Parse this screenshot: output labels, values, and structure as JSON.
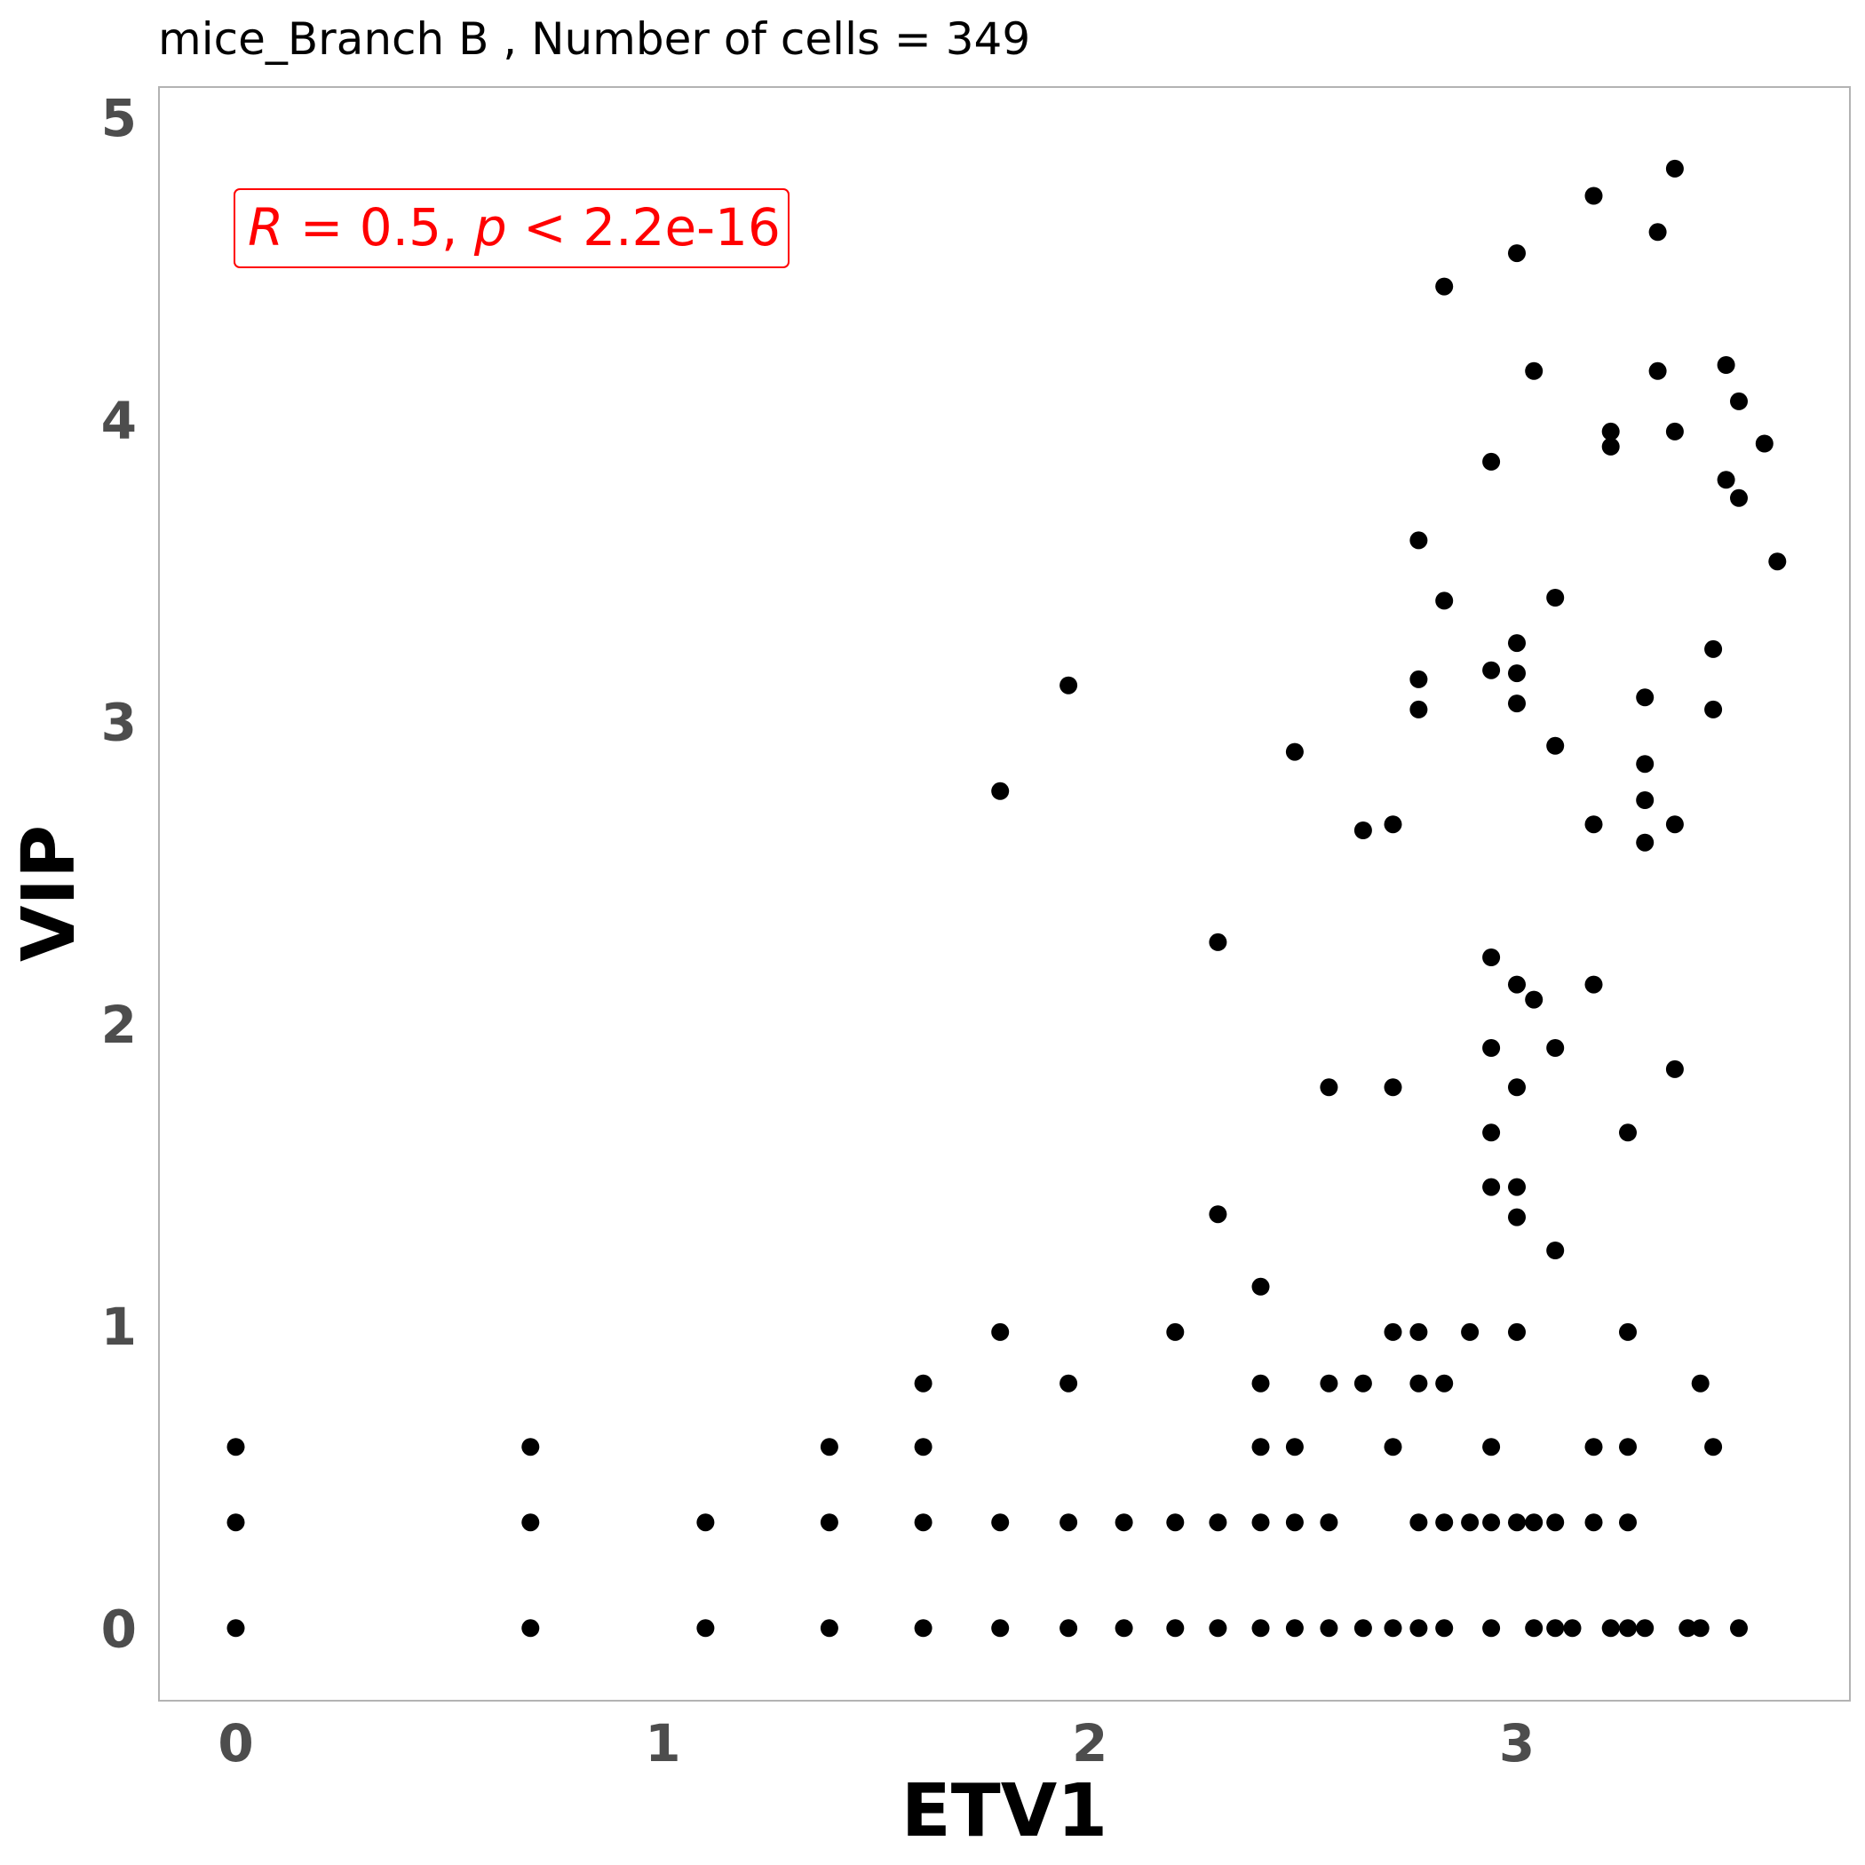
{
  "chart_data": {
    "type": "scatter",
    "title": "mice_Branch B , Number of cells =  349",
    "xlabel": "ETV1",
    "ylabel": "VIP",
    "xlim": [
      -0.18,
      3.78
    ],
    "ylim": [
      -0.24,
      5.1
    ],
    "xticks": [
      0,
      1,
      2,
      3
    ],
    "yticks": [
      0,
      1,
      2,
      3,
      4,
      5
    ],
    "grid": false,
    "point_color": "#000000",
    "annotation": {
      "r_symbol": "R",
      "r_value": " = 0.5, ",
      "p_symbol": "p",
      "p_value": " < 2.2e-16",
      "color": "#ff0000",
      "position": "top-left"
    },
    "points": [
      [
        0,
        0
      ],
      [
        0,
        0.35
      ],
      [
        0,
        0.6
      ],
      [
        0.69,
        0
      ],
      [
        0.69,
        0.35
      ],
      [
        0.69,
        0.6
      ],
      [
        1.1,
        0
      ],
      [
        1.1,
        0.35
      ],
      [
        1.39,
        0
      ],
      [
        1.39,
        0.35
      ],
      [
        1.39,
        0.6
      ],
      [
        1.61,
        0
      ],
      [
        1.61,
        0.35
      ],
      [
        1.61,
        0.6
      ],
      [
        1.61,
        0.81
      ],
      [
        1.79,
        0
      ],
      [
        1.79,
        0.35
      ],
      [
        1.79,
        0.98
      ],
      [
        1.79,
        2.77
      ],
      [
        1.95,
        0
      ],
      [
        1.95,
        0.35
      ],
      [
        1.95,
        0.81
      ],
      [
        1.95,
        3.12
      ],
      [
        2.08,
        0
      ],
      [
        2.08,
        0.35
      ],
      [
        2.2,
        0
      ],
      [
        2.2,
        0.35
      ],
      [
        2.2,
        0.98
      ],
      [
        2.3,
        0
      ],
      [
        2.3,
        0.35
      ],
      [
        2.3,
        1.37
      ],
      [
        2.3,
        2.27
      ],
      [
        2.4,
        0
      ],
      [
        2.4,
        0.35
      ],
      [
        2.4,
        0.6
      ],
      [
        2.4,
        0.81
      ],
      [
        2.4,
        1.13
      ],
      [
        2.48,
        0
      ],
      [
        2.48,
        0.35
      ],
      [
        2.48,
        0.6
      ],
      [
        2.48,
        2.9
      ],
      [
        2.56,
        0
      ],
      [
        2.56,
        0.35
      ],
      [
        2.56,
        0.81
      ],
      [
        2.56,
        1.79
      ],
      [
        2.64,
        0
      ],
      [
        2.64,
        0.81
      ],
      [
        2.64,
        2.64
      ],
      [
        2.71,
        0
      ],
      [
        2.71,
        0.6
      ],
      [
        2.71,
        0.98
      ],
      [
        2.71,
        1.79
      ],
      [
        2.71,
        2.66
      ],
      [
        2.77,
        0
      ],
      [
        2.77,
        0.35
      ],
      [
        2.77,
        0.81
      ],
      [
        2.77,
        0.98
      ],
      [
        2.77,
        3.04
      ],
      [
        2.77,
        3.14
      ],
      [
        2.77,
        3.6
      ],
      [
        2.83,
        0
      ],
      [
        2.83,
        0.35
      ],
      [
        2.83,
        0.81
      ],
      [
        2.83,
        3.4
      ],
      [
        2.83,
        4.44
      ],
      [
        2.89,
        0.35
      ],
      [
        2.89,
        0.98
      ],
      [
        2.94,
        0
      ],
      [
        2.94,
        0.35
      ],
      [
        2.94,
        0.6
      ],
      [
        2.94,
        1.46
      ],
      [
        2.94,
        1.64
      ],
      [
        2.94,
        1.92
      ],
      [
        2.94,
        2.22
      ],
      [
        2.94,
        3.17
      ],
      [
        2.94,
        3.86
      ],
      [
        3.0,
        0.35
      ],
      [
        3.0,
        0.98
      ],
      [
        3.0,
        1.36
      ],
      [
        3.0,
        1.46
      ],
      [
        3.0,
        1.79
      ],
      [
        3.0,
        2.13
      ],
      [
        3.0,
        3.06
      ],
      [
        3.0,
        3.16
      ],
      [
        3.0,
        3.26
      ],
      [
        3.0,
        4.55
      ],
      [
        3.04,
        0
      ],
      [
        3.04,
        0.35
      ],
      [
        3.04,
        2.08
      ],
      [
        3.04,
        4.16
      ],
      [
        3.09,
        0
      ],
      [
        3.09,
        0.35
      ],
      [
        3.09,
        1.25
      ],
      [
        3.09,
        1.92
      ],
      [
        3.09,
        2.92
      ],
      [
        3.09,
        3.41
      ],
      [
        3.13,
        0
      ],
      [
        3.18,
        0.35
      ],
      [
        3.18,
        0.6
      ],
      [
        3.18,
        2.13
      ],
      [
        3.18,
        2.66
      ],
      [
        3.18,
        4.74
      ],
      [
        3.22,
        0
      ],
      [
        3.22,
        3.91
      ],
      [
        3.22,
        3.96
      ],
      [
        3.26,
        0
      ],
      [
        3.26,
        0.35
      ],
      [
        3.26,
        0.6
      ],
      [
        3.26,
        0.98
      ],
      [
        3.26,
        1.64
      ],
      [
        3.3,
        0
      ],
      [
        3.3,
        2.6
      ],
      [
        3.3,
        2.74
      ],
      [
        3.3,
        2.86
      ],
      [
        3.3,
        3.08
      ],
      [
        3.33,
        4.16
      ],
      [
        3.33,
        4.62
      ],
      [
        3.37,
        1.85
      ],
      [
        3.37,
        2.66
      ],
      [
        3.37,
        3.96
      ],
      [
        3.37,
        4.83
      ],
      [
        3.4,
        0
      ],
      [
        3.43,
        0
      ],
      [
        3.43,
        0.81
      ],
      [
        3.46,
        0.6
      ],
      [
        3.46,
        3.04
      ],
      [
        3.46,
        3.24
      ],
      [
        3.49,
        3.8
      ],
      [
        3.49,
        4.18
      ],
      [
        3.52,
        0
      ],
      [
        3.52,
        3.74
      ],
      [
        3.52,
        4.06
      ],
      [
        3.58,
        3.92
      ],
      [
        3.61,
        3.53
      ]
    ]
  }
}
